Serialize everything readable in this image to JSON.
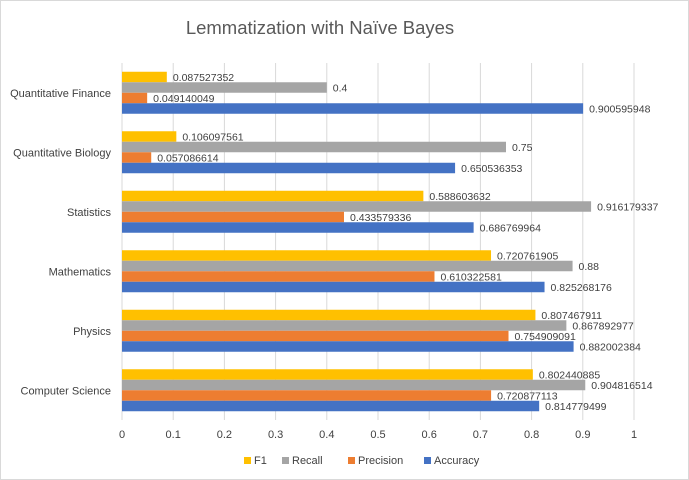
{
  "chart_data": {
    "type": "bar",
    "orientation": "horizontal",
    "title": "Lemmatization with Naïve Bayes",
    "categories": [
      "Computer Science",
      "Physics",
      "Mathematics",
      "Statistics",
      "Quantitative Biology",
      "Quantitative Finance"
    ],
    "series": [
      {
        "name": "F1",
        "color": "#ffc000",
        "values": [
          0.802440885,
          0.807467911,
          0.720761905,
          0.588603632,
          0.106097561,
          0.087527352
        ],
        "labels": [
          "0.802440885",
          "0.807467911",
          "0.720761905",
          "0.588603632",
          "0.106097561",
          "0.087527352"
        ]
      },
      {
        "name": "Recall",
        "color": "#a5a5a5",
        "values": [
          0.904816514,
          0.867892977,
          0.88,
          0.916179337,
          0.75,
          0.4
        ],
        "labels": [
          "0.904816514",
          "0.867892977",
          "0.88",
          "0.916179337",
          "0.75",
          "0.4"
        ]
      },
      {
        "name": "Precision",
        "color": "#ed7d31",
        "values": [
          0.720877113,
          0.754909091,
          0.610322581,
          0.433579336,
          0.057086614,
          0.049140049
        ],
        "labels": [
          "0.720877113",
          "0.754909091",
          "0.610322581",
          "0.433579336",
          "0.057086614",
          "0.049140049"
        ]
      },
      {
        "name": "Accuracy",
        "color": "#4472c4",
        "values": [
          0.814779499,
          0.882002384,
          0.825268176,
          0.686769964,
          0.650536353,
          0.900595948
        ],
        "labels": [
          "0.814779499",
          "0.882002384",
          "0.825268176",
          "0.686769964",
          "0.650536353",
          "0.900595948"
        ]
      }
    ],
    "xlim": [
      0,
      1
    ],
    "xticks": [
      "0",
      "0.1",
      "0.2",
      "0.3",
      "0.4",
      "0.5",
      "0.6",
      "0.7",
      "0.8",
      "0.9",
      "1"
    ],
    "grid": true,
    "legend_position": "bottom"
  }
}
